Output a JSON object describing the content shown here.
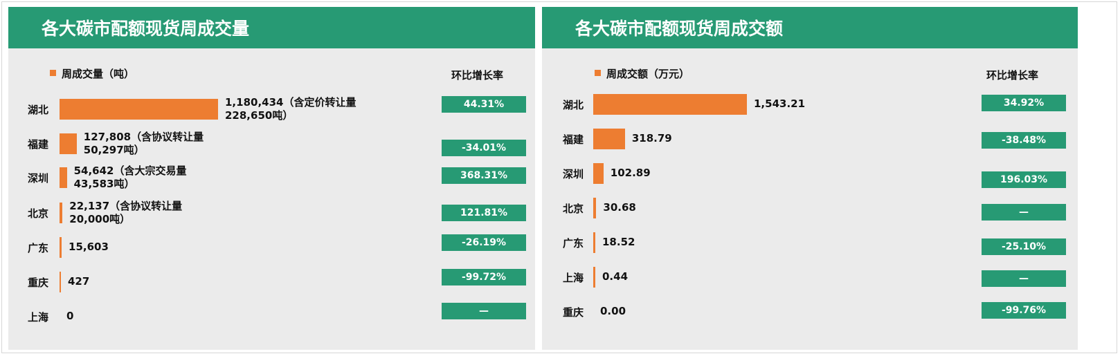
{
  "colors": {
    "header": "#279a74",
    "bar": "#ed7d31",
    "growth_box": "#279a74",
    "panel_bg": "#ebebeb"
  },
  "panels": [
    {
      "title": "各大碳市配额现货周成交量",
      "legend": "周成交量（吨）",
      "growth_header": "环比增长率"
    },
    {
      "title": "各大碳市配额现货周成交额",
      "legend": "周成交额（万元）",
      "growth_header": "环比增长率"
    }
  ],
  "chart_data": [
    {
      "type": "bar",
      "orientation": "horizontal",
      "title": "各大碳市配额现货周成交量",
      "categories": [
        "湖北",
        "福建",
        "深圳",
        "北京",
        "广东",
        "重庆",
        "上海"
      ],
      "series": [
        {
          "name": "周成交量（吨）",
          "values": [
            1180434,
            127808,
            54642,
            22137,
            15603,
            427,
            0
          ]
        }
      ],
      "data_labels": [
        [
          "1,180,434（含定价转让量",
          "228,650吨）"
        ],
        [
          "127,808（含协议转让量",
          "50,297吨）"
        ],
        [
          "54,642（含大宗交易量",
          "43,583吨）"
        ],
        [
          "22,137（含协议转让量",
          "20,000吨）"
        ],
        [
          "15,603"
        ],
        [
          "427"
        ],
        [
          "0"
        ]
      ],
      "growth_header": "环比增长率",
      "growth": [
        "44.31%",
        "-34.01%",
        "368.31%",
        "121.81%",
        "-26.19%",
        "-99.72%",
        "—"
      ]
    },
    {
      "type": "bar",
      "orientation": "horizontal",
      "title": "各大碳市配额现货周成交额",
      "categories": [
        "湖北",
        "福建",
        "深圳",
        "北京",
        "广东",
        "上海",
        "重庆"
      ],
      "series": [
        {
          "name": "周成交额（万元）",
          "values": [
            1543.21,
            318.79,
            102.89,
            30.68,
            18.52,
            0.44,
            0.0
          ]
        }
      ],
      "data_labels": [
        [
          "1,543.21"
        ],
        [
          "318.79"
        ],
        [
          "102.89"
        ],
        [
          "30.68"
        ],
        [
          "18.52"
        ],
        [
          "0.44"
        ],
        [
          "0.00"
        ]
      ],
      "growth_header": "环比增长率",
      "growth": [
        "34.92%",
        "-38.48%",
        "196.03%",
        "—",
        "-25.10%",
        "—",
        "-99.76%"
      ]
    }
  ]
}
